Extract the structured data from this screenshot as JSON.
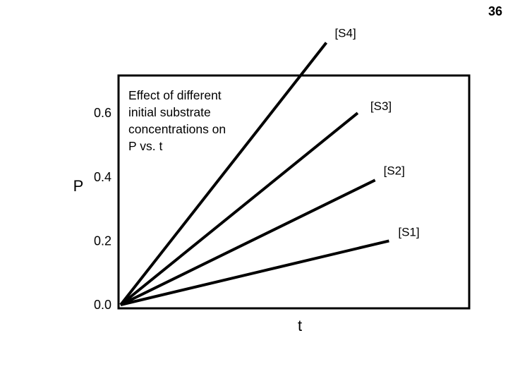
{
  "slide_number": "36",
  "chart_data": {
    "type": "line",
    "title": "",
    "xlabel": "t",
    "ylabel": "P",
    "ylim": [
      0,
      0.7
    ],
    "yticks": [
      {
        "value": 0.0,
        "label": "0.0"
      },
      {
        "value": 0.2,
        "label": "0.2"
      },
      {
        "value": 0.4,
        "label": "0.4"
      },
      {
        "value": 0.6,
        "label": "0.6"
      }
    ],
    "annotation": [
      "Effect of different",
      "initial substrate",
      "concentrations on",
      "P vs. t"
    ],
    "series": [
      {
        "name": "[S1]",
        "start": [
          0,
          0
        ],
        "end": [
          0.77,
          0.2
        ]
      },
      {
        "name": "[S2]",
        "start": [
          0,
          0
        ],
        "end": [
          0.73,
          0.39
        ]
      },
      {
        "name": "[S3]",
        "start": [
          0,
          0
        ],
        "end": [
          0.68,
          0.6
        ]
      },
      {
        "name": "[S4]",
        "start": [
          0,
          0
        ],
        "end": [
          0.59,
          0.82
        ]
      }
    ],
    "xlim": [
      0,
      1
    ],
    "grid": false,
    "line_color": "#000000"
  }
}
